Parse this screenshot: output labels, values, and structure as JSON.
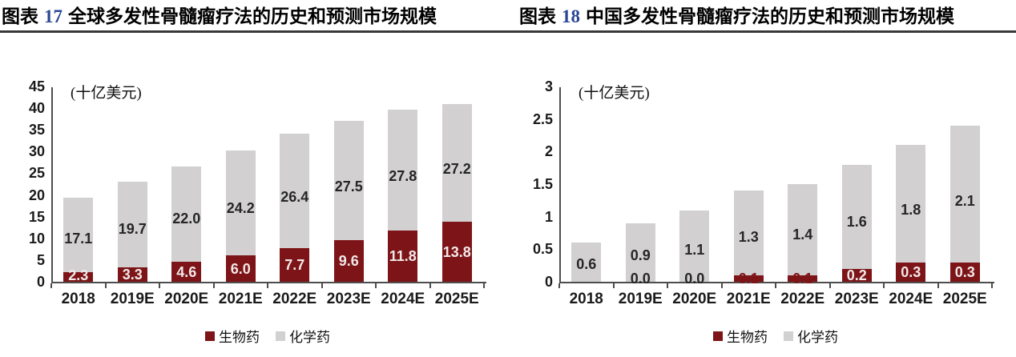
{
  "header": {
    "figures": [
      {
        "prefix": "图表",
        "number": "17",
        "title": "全球多发性骨髓瘤疗法的历史和预测市场规模"
      },
      {
        "prefix": "图表",
        "number": "18",
        "title": "中国多发性骨髓瘤疗法的历史和预测市场规模"
      }
    ]
  },
  "colors": {
    "biologics": "#7d1417",
    "chemical": "#d2d0d0",
    "axis": "#4d4d4d",
    "tick_text": "#1a1a1a",
    "value_dark": "#262626",
    "value_light": "#f1e9e9",
    "figure_number": "#2a4796",
    "rule": "#383838"
  },
  "chart_data": [
    {
      "type": "bar",
      "stacked": true,
      "title": "图表 17 全球多发性骨髓瘤疗法的历史和预测市场规模",
      "unit_label": "(十亿美元)",
      "categories": [
        "2018",
        "2019E",
        "2020E",
        "2021E",
        "2022E",
        "2023E",
        "2024E",
        "2025E"
      ],
      "ylim": [
        0,
        45
      ],
      "y_tick_labels": [
        "0",
        "5",
        "10",
        "15",
        "20",
        "25",
        "30",
        "35",
        "40",
        "45"
      ],
      "grid": false,
      "legend_position": "bottom",
      "series": [
        {
          "name": "生物药",
          "color": "biologics",
          "values": [
            2.3,
            3.3,
            4.6,
            6.0,
            7.7,
            9.6,
            11.8,
            13.8
          ],
          "labels": [
            "2.3",
            "3.3",
            "4.6",
            "6.0",
            "7.7",
            "9.6",
            "11.8",
            "13.8"
          ],
          "label_styles": [
            "inside-light",
            "inside-light",
            "inside-light",
            "inside-light",
            "inside-light",
            "inside-light",
            "inside-light",
            "inside-light"
          ]
        },
        {
          "name": "化学药",
          "color": "chemical",
          "values": [
            17.1,
            19.7,
            22.0,
            24.2,
            26.4,
            27.5,
            27.8,
            27.2
          ],
          "labels": [
            "17.1",
            "19.7",
            "22.0",
            "24.2",
            "26.4",
            "27.5",
            "27.8",
            "27.2"
          ],
          "label_styles": [
            "inside-dark",
            "inside-dark",
            "inside-dark",
            "inside-dark",
            "inside-dark",
            "inside-dark",
            "inside-dark",
            "inside-dark"
          ]
        }
      ]
    },
    {
      "type": "bar",
      "stacked": true,
      "title": "图表 18 中国多发性骨髓瘤疗法的历史和预测市场规模",
      "unit_label": "(十亿美元)",
      "categories": [
        "2018",
        "2019E",
        "2020E",
        "2021E",
        "2022E",
        "2023E",
        "2024E",
        "2025E"
      ],
      "ylim": [
        0,
        3
      ],
      "y_tick_labels": [
        "0",
        "0.5",
        "1",
        "1.5",
        "2",
        "2.5",
        "3"
      ],
      "grid": false,
      "legend_position": "bottom",
      "series": [
        {
          "name": "生物药",
          "color": "biologics",
          "values": [
            0.0,
            0.0,
            0.0,
            0.1,
            0.1,
            0.2,
            0.3,
            0.3
          ],
          "labels": [
            "",
            "0.0",
            "0.0",
            "0.1",
            "0.1",
            "0.2",
            "0.3",
            "0.3"
          ],
          "label_styles": [
            "none",
            "baseline-dark",
            "baseline-dark",
            "baseline-red",
            "baseline-red",
            "inside-light",
            "inside-light",
            "inside-light"
          ]
        },
        {
          "name": "化学药",
          "color": "chemical",
          "values": [
            0.6,
            0.9,
            1.1,
            1.3,
            1.4,
            1.6,
            1.8,
            2.1
          ],
          "labels": [
            "0.6",
            "0.9",
            "1.1",
            "1.3",
            "1.4",
            "1.6",
            "1.8",
            "2.1"
          ],
          "label_styles": [
            "inside-dark",
            "inside-dark",
            "inside-dark",
            "inside-dark",
            "inside-dark",
            "inside-dark",
            "inside-dark",
            "inside-dark"
          ]
        }
      ]
    }
  ]
}
